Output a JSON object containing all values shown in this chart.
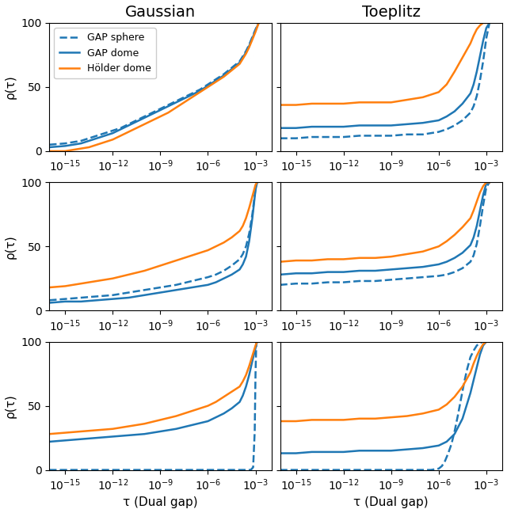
{
  "col_titles": [
    "Gaussian",
    "Toeplitz"
  ],
  "legend_labels": [
    "GAP sphere",
    "GAP dome",
    "Hölder dome"
  ],
  "line_styles": [
    "--",
    "-",
    "-"
  ],
  "line_colors": [
    "#1f77b4",
    "#1f77b4",
    "#ff7f0e"
  ],
  "xlabel": "τ (Dual gap)",
  "ylabel": "ρ(τ)",
  "ylim": [
    0,
    100
  ],
  "x_ticks": [
    -15,
    -12,
    -9,
    -6,
    -3
  ],
  "curves": {
    "gauss_row0": {
      "gap_sphere": {
        "x": [
          -16,
          -15,
          -14.5,
          -14,
          -13.5,
          -13,
          -12.5,
          -12,
          -11.5,
          -11,
          -10.5,
          -10,
          -9.5,
          -9,
          -8.5,
          -8,
          -7.5,
          -7,
          -6.5,
          -6,
          -5.5,
          -5,
          -4.5,
          -4,
          -3.8,
          -3.6,
          -3.4,
          -3.2,
          -3.0,
          -2.8
        ],
        "y": [
          5,
          6,
          7,
          8,
          10,
          12,
          14,
          16,
          18,
          21,
          24,
          27,
          30,
          33,
          36,
          39,
          42,
          45,
          48,
          52,
          56,
          60,
          65,
          70,
          74,
          78,
          83,
          89,
          95,
          100
        ]
      },
      "gap_dome": {
        "x": [
          -16,
          -15,
          -14.5,
          -14,
          -13.5,
          -13,
          -12.5,
          -12,
          -11.5,
          -11,
          -10.5,
          -10,
          -9.5,
          -9,
          -8.5,
          -8,
          -7.5,
          -7,
          -6.5,
          -6,
          -5.5,
          -5,
          -4.5,
          -4,
          -3.8,
          -3.6,
          -3.4,
          -3.2,
          -3.0,
          -2.8
        ],
        "y": [
          3,
          4,
          5,
          6,
          8,
          10,
          12,
          14,
          17,
          20,
          23,
          26,
          29,
          32,
          35,
          38,
          41,
          44,
          47,
          51,
          55,
          59,
          64,
          69,
          73,
          77,
          82,
          88,
          94,
          100
        ]
      },
      "holder_dome": {
        "x": [
          -16,
          -15,
          -14.5,
          -14,
          -13.5,
          -13,
          -12.5,
          -12,
          -11.5,
          -11,
          -10.5,
          -10,
          -9.5,
          -9,
          -8.5,
          -8,
          -7.5,
          -7,
          -6.5,
          -6,
          -5.5,
          -5,
          -4.5,
          -4,
          -3.8,
          -3.6,
          -3.4,
          -3.2,
          -3.0,
          -2.8
        ],
        "y": [
          0,
          0,
          1,
          2,
          3,
          5,
          7,
          9,
          12,
          15,
          18,
          21,
          24,
          27,
          30,
          34,
          38,
          42,
          46,
          50,
          54,
          58,
          63,
          68,
          72,
          76,
          81,
          87,
          93,
          100
        ]
      }
    },
    "toeplitz_row0": {
      "gap_sphere": {
        "x": [
          -16,
          -15,
          -14,
          -13,
          -12,
          -11,
          -10,
          -9,
          -8,
          -7,
          -6,
          -5.5,
          -5,
          -4.5,
          -4,
          -3.8,
          -3.6,
          -3.4,
          -3.2,
          -3.0,
          -2.8
        ],
        "y": [
          10,
          10,
          11,
          11,
          11,
          12,
          12,
          12,
          13,
          13,
          15,
          17,
          20,
          24,
          30,
          35,
          43,
          55,
          70,
          88,
          100
        ]
      },
      "gap_dome": {
        "x": [
          -16,
          -15,
          -14,
          -13,
          -12,
          -11,
          -10,
          -9,
          -8,
          -7,
          -6,
          -5.5,
          -5,
          -4.5,
          -4,
          -3.8,
          -3.6,
          -3.4,
          -3.2,
          -3.0,
          -2.8
        ],
        "y": [
          18,
          18,
          19,
          19,
          19,
          20,
          20,
          20,
          21,
          22,
          24,
          27,
          31,
          37,
          45,
          52,
          62,
          74,
          86,
          96,
          100
        ]
      },
      "holder_dome": {
        "x": [
          -16,
          -15,
          -14,
          -13,
          -12,
          -11,
          -10,
          -9,
          -8,
          -7,
          -6,
          -5.5,
          -5,
          -4.5,
          -4,
          -3.8,
          -3.6,
          -3.4,
          -3.2,
          -3.0,
          -2.8
        ],
        "y": [
          36,
          36,
          37,
          37,
          37,
          38,
          38,
          38,
          40,
          42,
          46,
          52,
          62,
          73,
          84,
          90,
          95,
          98,
          100,
          100,
          100
        ]
      }
    },
    "gauss_row1": {
      "gap_sphere": {
        "x": [
          -16,
          -15,
          -14,
          -13,
          -12,
          -11,
          -10,
          -9,
          -8,
          -7,
          -6,
          -5.5,
          -5,
          -4.5,
          -4,
          -3.8,
          -3.6,
          -3.4,
          -3.2,
          -3.0,
          -2.9
        ],
        "y": [
          8,
          9,
          10,
          11,
          12,
          14,
          16,
          18,
          20,
          23,
          26,
          28,
          31,
          35,
          40,
          44,
          50,
          60,
          75,
          95,
          100
        ]
      },
      "gap_dome": {
        "x": [
          -16,
          -15,
          -14,
          -13,
          -12,
          -11,
          -10,
          -9,
          -8,
          -7,
          -6,
          -5.5,
          -5,
          -4.5,
          -4,
          -3.8,
          -3.6,
          -3.4,
          -3.2,
          -3.0,
          -2.9
        ],
        "y": [
          6,
          7,
          7,
          8,
          9,
          10,
          12,
          14,
          16,
          18,
          20,
          22,
          25,
          28,
          32,
          36,
          42,
          54,
          72,
          94,
          100
        ]
      },
      "holder_dome": {
        "x": [
          -16,
          -15,
          -14,
          -13,
          -12,
          -11,
          -10,
          -9,
          -8,
          -7,
          -6,
          -5.5,
          -5,
          -4.5,
          -4,
          -3.8,
          -3.6,
          -3.4,
          -3.2,
          -3.0,
          -2.9
        ],
        "y": [
          18,
          19,
          21,
          23,
          25,
          28,
          31,
          35,
          39,
          43,
          47,
          50,
          53,
          57,
          62,
          66,
          72,
          80,
          89,
          98,
          100
        ]
      }
    },
    "toeplitz_row1": {
      "gap_sphere": {
        "x": [
          -16,
          -15,
          -14,
          -13,
          -12,
          -11,
          -10,
          -9,
          -8,
          -7,
          -6,
          -5.5,
          -5,
          -4.5,
          -4,
          -3.8,
          -3.6,
          -3.4,
          -3.2,
          -3.0,
          -2.8
        ],
        "y": [
          20,
          21,
          21,
          22,
          22,
          23,
          23,
          24,
          25,
          26,
          27,
          28,
          30,
          33,
          38,
          43,
          52,
          66,
          82,
          96,
          100
        ]
      },
      "gap_dome": {
        "x": [
          -16,
          -15,
          -14,
          -13,
          -12,
          -11,
          -10,
          -9,
          -8,
          -7,
          -6,
          -5.5,
          -5,
          -4.5,
          -4,
          -3.8,
          -3.6,
          -3.4,
          -3.2,
          -3.0,
          -2.8
        ],
        "y": [
          28,
          29,
          29,
          30,
          30,
          31,
          31,
          32,
          33,
          34,
          36,
          38,
          41,
          45,
          51,
          57,
          66,
          78,
          90,
          99,
          100
        ]
      },
      "holder_dome": {
        "x": [
          -16,
          -15,
          -14,
          -13,
          -12,
          -11,
          -10,
          -9,
          -8,
          -7,
          -6,
          -5.5,
          -5,
          -4.5,
          -4,
          -3.8,
          -3.6,
          -3.4,
          -3.2,
          -3.0,
          -2.8
        ],
        "y": [
          38,
          39,
          39,
          40,
          40,
          41,
          41,
          42,
          44,
          46,
          50,
          54,
          59,
          65,
          72,
          78,
          85,
          92,
          97,
          100,
          100
        ]
      }
    },
    "gauss_row2": {
      "gap_sphere": {
        "x": [
          -16,
          -15,
          -14,
          -13,
          -12,
          -11,
          -10,
          -9,
          -8,
          -7,
          -6,
          -5,
          -4,
          -3.5,
          -3.3,
          -3.15,
          -3.05,
          -3.0,
          -2.95
        ],
        "y": [
          0,
          0,
          0,
          0,
          0,
          0,
          0,
          0,
          0,
          0,
          0,
          0,
          0,
          0,
          0,
          2,
          30,
          75,
          100
        ]
      },
      "gap_dome": {
        "x": [
          -16,
          -15,
          -14,
          -13,
          -12,
          -11,
          -10,
          -9,
          -8,
          -7,
          -6,
          -5.5,
          -5,
          -4.5,
          -4,
          -3.8,
          -3.6,
          -3.4,
          -3.2,
          -3.0,
          -2.9
        ],
        "y": [
          22,
          23,
          24,
          25,
          26,
          27,
          28,
          30,
          32,
          35,
          38,
          41,
          44,
          48,
          53,
          58,
          65,
          74,
          85,
          95,
          100
        ]
      },
      "holder_dome": {
        "x": [
          -16,
          -15,
          -14,
          -13,
          -12,
          -11,
          -10,
          -9,
          -8,
          -7,
          -6,
          -5.5,
          -5,
          -4.5,
          -4,
          -3.8,
          -3.6,
          -3.4,
          -3.2,
          -3.0,
          -2.9
        ],
        "y": [
          28,
          29,
          30,
          31,
          32,
          34,
          36,
          39,
          42,
          46,
          50,
          53,
          57,
          61,
          65,
          69,
          74,
          81,
          89,
          97,
          100
        ]
      }
    },
    "toeplitz_row2": {
      "gap_sphere": {
        "x": [
          -16,
          -15,
          -14,
          -13,
          -12,
          -11,
          -10,
          -9,
          -8,
          -7,
          -6.5,
          -6,
          -5.8,
          -5.6,
          -5.4,
          -5.2,
          -5.0,
          -4.8,
          -4.6,
          -4.4,
          -4.2,
          -4.0,
          -3.8,
          -3.6,
          -3.4,
          -3.2,
          -3.0
        ],
        "y": [
          0,
          0,
          0,
          0,
          0,
          0,
          0,
          0,
          0,
          0,
          0,
          1,
          3,
          7,
          13,
          20,
          30,
          42,
          55,
          68,
          79,
          88,
          93,
          97,
          99,
          100,
          100
        ]
      },
      "gap_dome": {
        "x": [
          -16,
          -15,
          -14,
          -13,
          -12,
          -11,
          -10,
          -9,
          -8,
          -7,
          -6,
          -5.5,
          -5,
          -4.5,
          -4,
          -3.8,
          -3.6,
          -3.4,
          -3.2,
          -3.0
        ],
        "y": [
          13,
          13,
          14,
          14,
          14,
          15,
          15,
          15,
          16,
          17,
          19,
          22,
          28,
          40,
          60,
          70,
          80,
          90,
          97,
          100
        ]
      },
      "holder_dome": {
        "x": [
          -16,
          -15,
          -14,
          -13,
          -12,
          -11,
          -10,
          -9,
          -8,
          -7,
          -6,
          -5.5,
          -5,
          -4.5,
          -4,
          -3.8,
          -3.6,
          -3.4,
          -3.2,
          -3.0
        ],
        "y": [
          38,
          38,
          39,
          39,
          39,
          40,
          40,
          41,
          42,
          44,
          47,
          51,
          57,
          65,
          76,
          83,
          89,
          94,
          98,
          100
        ]
      }
    }
  }
}
